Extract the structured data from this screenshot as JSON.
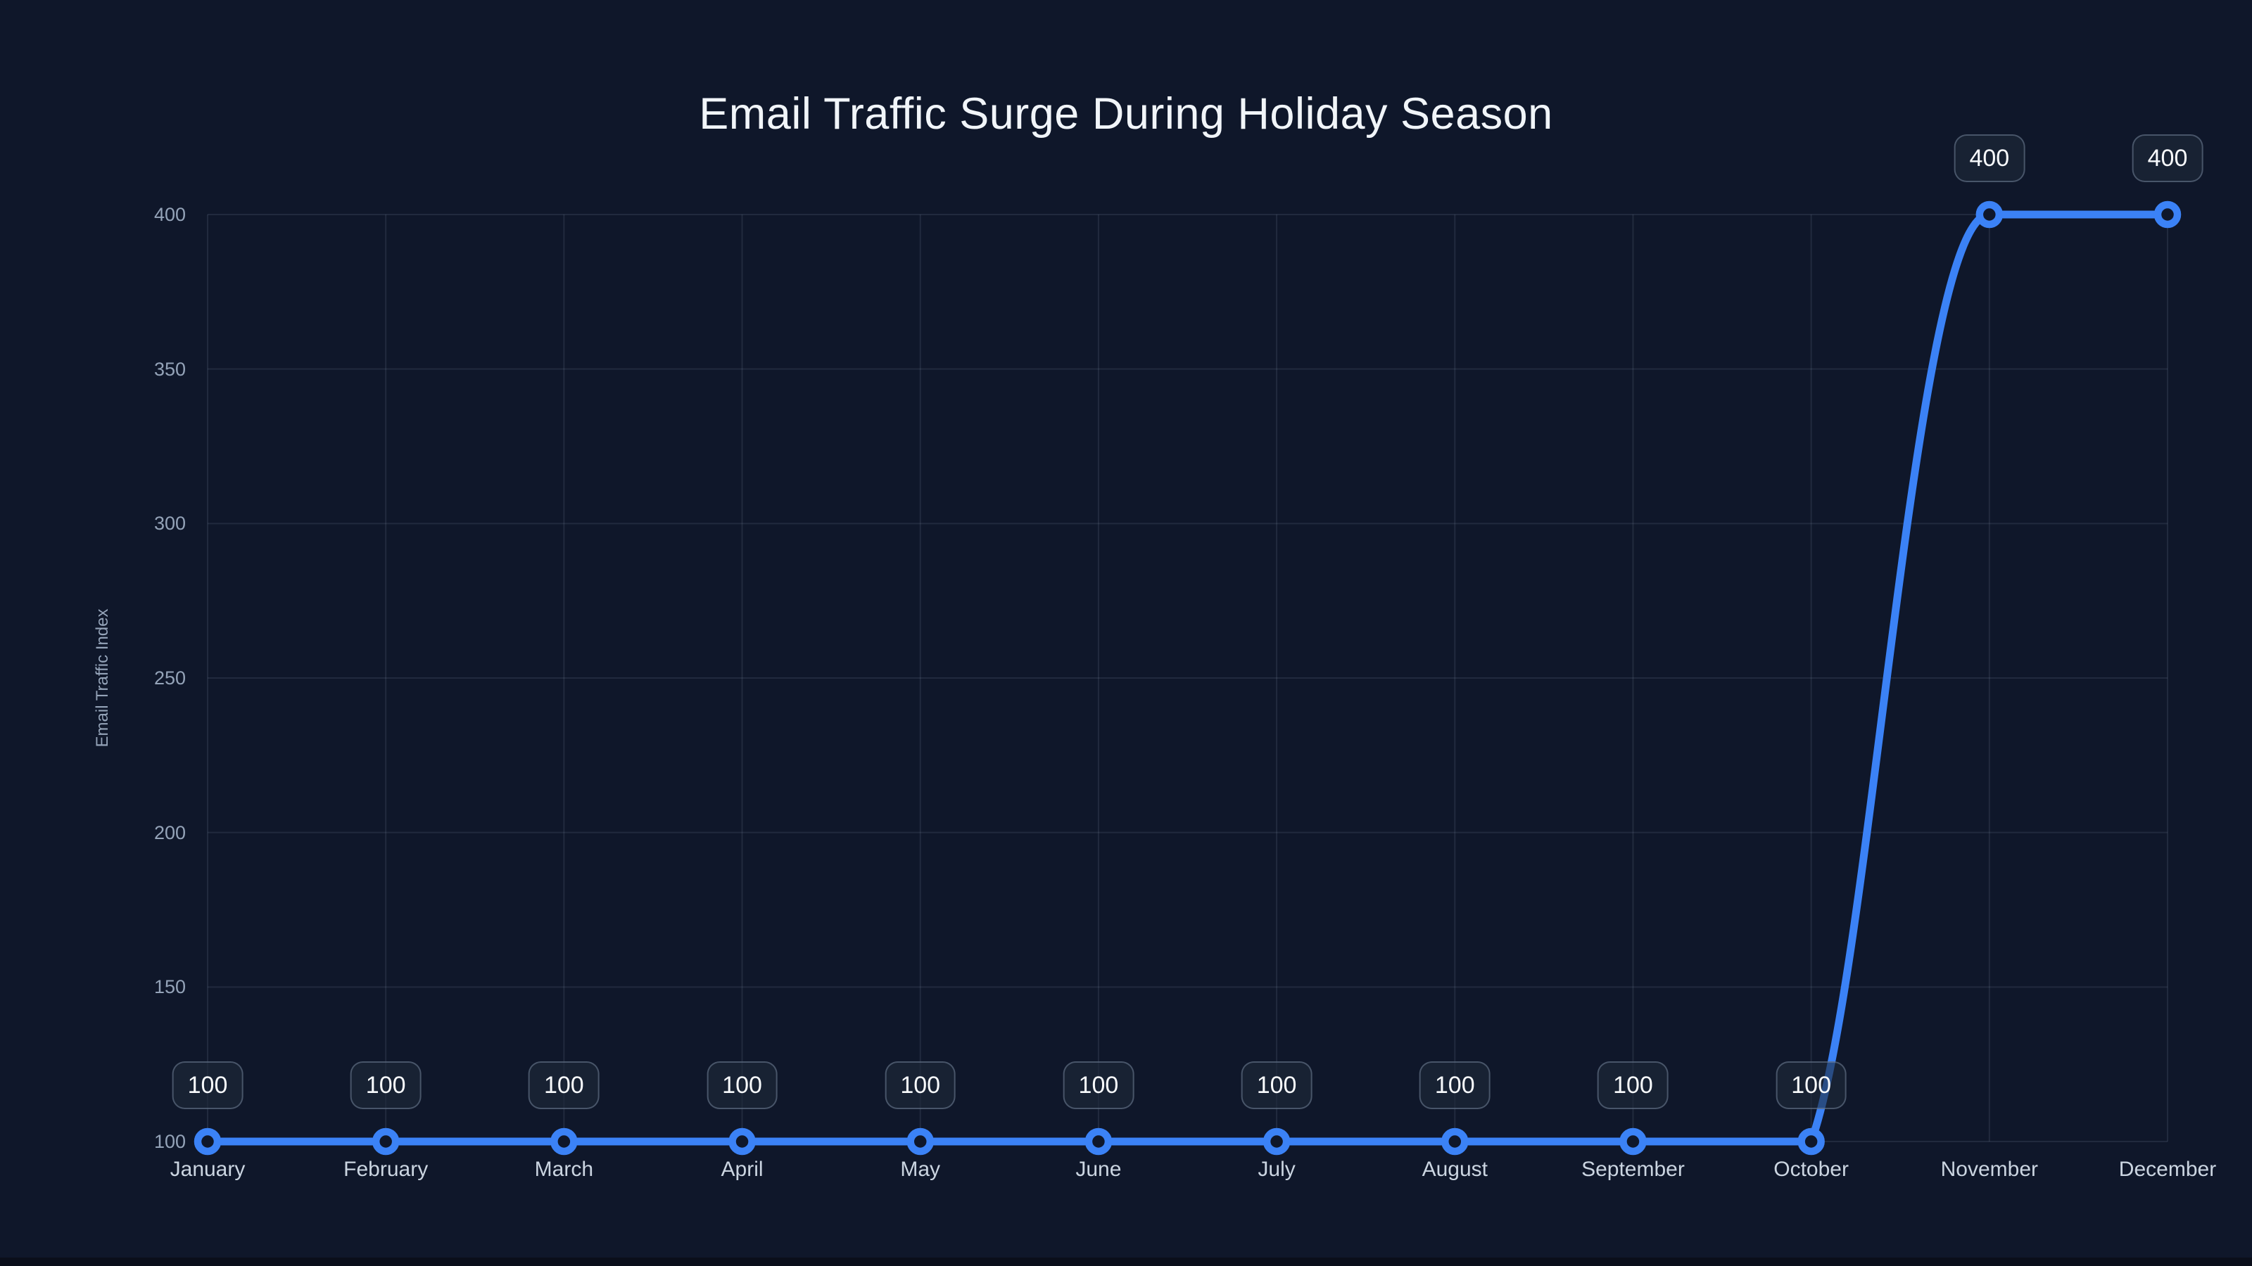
{
  "chart_data": {
    "type": "line",
    "title": "Email Traffic Surge During Holiday Season",
    "xlabel": "",
    "ylabel": "Email Traffic Index",
    "categories": [
      "January",
      "February",
      "March",
      "April",
      "May",
      "June",
      "July",
      "August",
      "September",
      "October",
      "November",
      "December"
    ],
    "series": [
      {
        "name": "Email Traffic Index",
        "values": [
          100,
          100,
          100,
          100,
          100,
          100,
          100,
          100,
          100,
          100,
          400,
          400
        ]
      }
    ],
    "point_value_labels_visible": true,
    "y_ticks": [
      100,
      150,
      200,
      250,
      300,
      350,
      400
    ],
    "ylim": [
      100,
      400
    ],
    "grid": true,
    "legend_position": "none",
    "colors": {
      "background": "#0f172a",
      "accent_line": "#3b82f6",
      "marker_fill": "#0f172a",
      "grid": "rgba(148,163,184,0.14)",
      "title_text": "#f1f5f9",
      "axis_tick_text": "#94a3b8",
      "category_text": "#cbd5e1",
      "value_badge_text": "#f8fafc",
      "value_badge_border": "rgba(148,163,184,0.4)",
      "value_badge_bg": "rgba(30,41,59,0.6)",
      "bottom_strip": "#0a0e1a"
    }
  }
}
